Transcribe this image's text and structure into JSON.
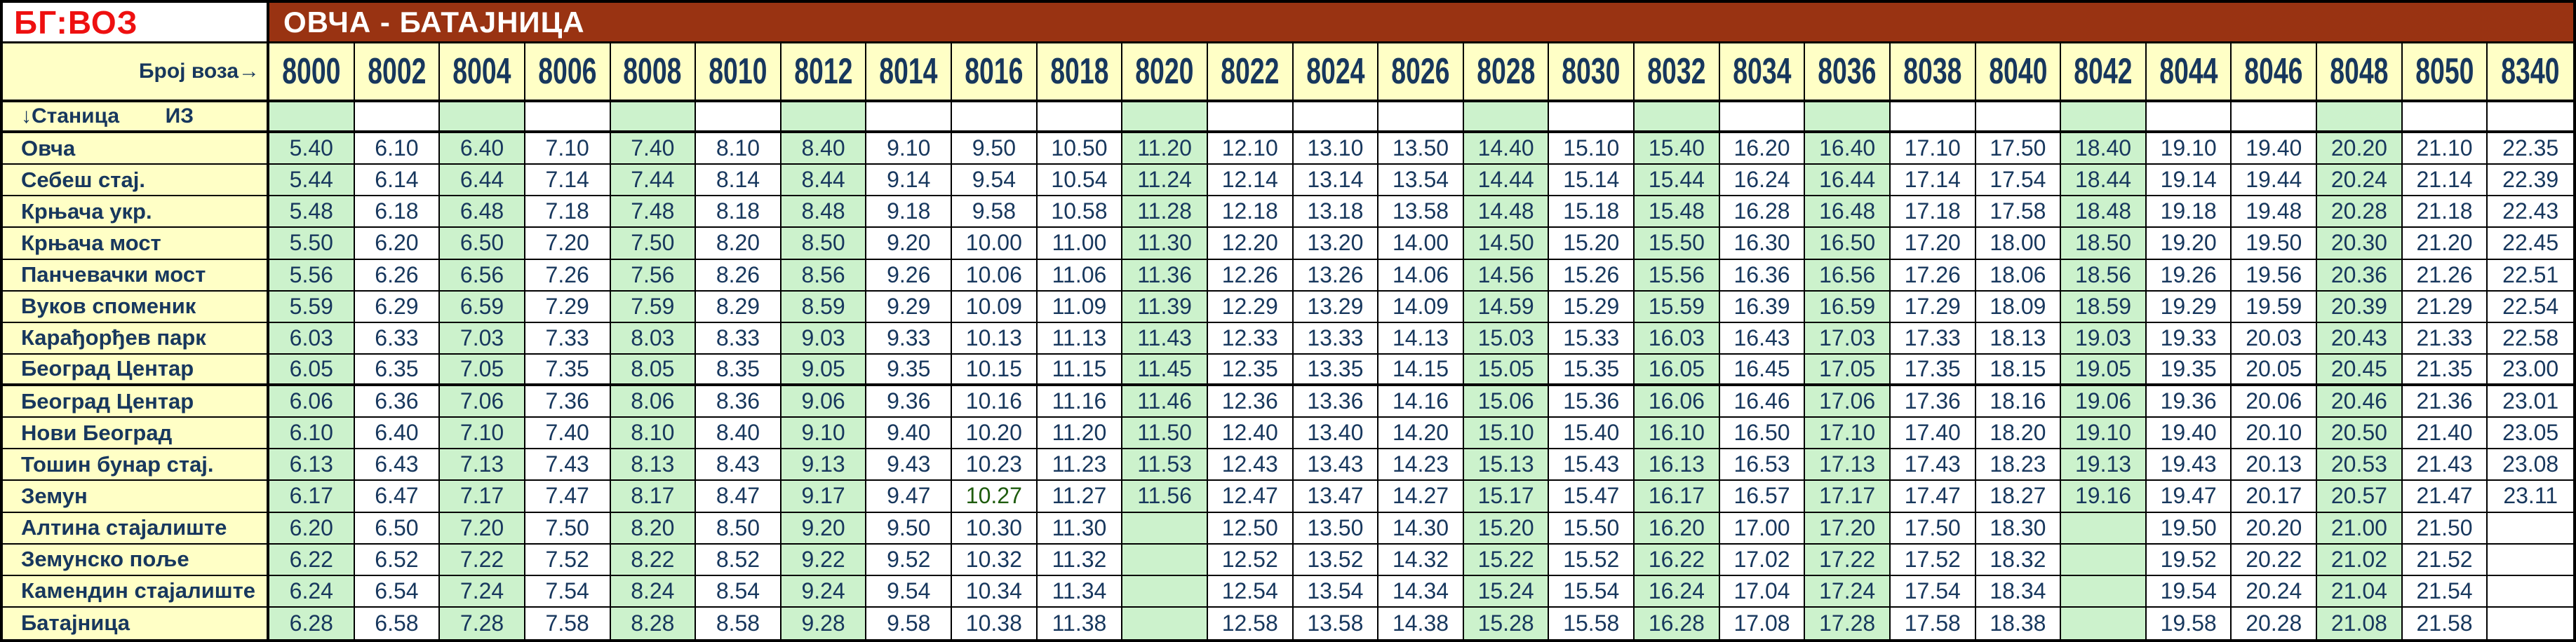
{
  "logo": "БГ:ВОЗ",
  "title": "ОВЧА - БАТАЈНИЦА",
  "labels": {
    "train_no": "Број воза→",
    "station": "↓Станица",
    "from": "ИЗ"
  },
  "colors": {
    "accent_brown": "#993312",
    "logo_red": "#EE1010",
    "navy": "#17375D",
    "green_bg": "#CCF2CC",
    "yellow_bg": "#FFFFC6",
    "special_green": "#1F5C0E"
  },
  "stations": [
    "Овча",
    "Себеш стај.",
    "Крњача укр.",
    "Крњача мост",
    "Панчевачки мост",
    "Вуков споменик",
    "Карађорђев парк",
    "Београд  Центар",
    "Београд  Центар",
    "Нови Београд",
    "Тошин бунар стај.",
    "Земун",
    "Алтина стајалиште",
    "Земунско поље",
    "Камендин стајалиште",
    "Батајница"
  ],
  "section_break_after_station_index": 7,
  "trains": [
    {
      "number": "8000",
      "highlight": true,
      "times": [
        "5.40",
        "5.44",
        "5.48",
        "5.50",
        "5.56",
        "5.59",
        "6.03",
        "6.05",
        "6.06",
        "6.10",
        "6.13",
        "6.17",
        "6.20",
        "6.22",
        "6.24",
        "6.28"
      ]
    },
    {
      "number": "8002",
      "highlight": false,
      "times": [
        "6.10",
        "6.14",
        "6.18",
        "6.20",
        "6.26",
        "6.29",
        "6.33",
        "6.35",
        "6.36",
        "6.40",
        "6.43",
        "6.47",
        "6.50",
        "6.52",
        "6.54",
        "6.58"
      ]
    },
    {
      "number": "8004",
      "highlight": true,
      "times": [
        "6.40",
        "6.44",
        "6.48",
        "6.50",
        "6.56",
        "6.59",
        "7.03",
        "7.05",
        "7.06",
        "7.10",
        "7.13",
        "7.17",
        "7.20",
        "7.22",
        "7.24",
        "7.28"
      ]
    },
    {
      "number": "8006",
      "highlight": false,
      "times": [
        "7.10",
        "7.14",
        "7.18",
        "7.20",
        "7.26",
        "7.29",
        "7.33",
        "7.35",
        "7.36",
        "7.40",
        "7.43",
        "7.47",
        "7.50",
        "7.52",
        "7.54",
        "7.58"
      ]
    },
    {
      "number": "8008",
      "highlight": true,
      "times": [
        "7.40",
        "7.44",
        "7.48",
        "7.50",
        "7.56",
        "7.59",
        "8.03",
        "8.05",
        "8.06",
        "8.10",
        "8.13",
        "8.17",
        "8.20",
        "8.22",
        "8.24",
        "8.28"
      ]
    },
    {
      "number": "8010",
      "highlight": false,
      "times": [
        "8.10",
        "8.14",
        "8.18",
        "8.20",
        "8.26",
        "8.29",
        "8.33",
        "8.35",
        "8.36",
        "8.40",
        "8.43",
        "8.47",
        "8.50",
        "8.52",
        "8.54",
        "8.58"
      ]
    },
    {
      "number": "8012",
      "highlight": true,
      "times": [
        "8.40",
        "8.44",
        "8.48",
        "8.50",
        "8.56",
        "8.59",
        "9.03",
        "9.05",
        "9.06",
        "9.10",
        "9.13",
        "9.17",
        "9.20",
        "9.22",
        "9.24",
        "9.28"
      ]
    },
    {
      "number": "8014",
      "highlight": false,
      "times": [
        "9.10",
        "9.14",
        "9.18",
        "9.20",
        "9.26",
        "9.29",
        "9.33",
        "9.35",
        "9.36",
        "9.40",
        "9.43",
        "9.47",
        "9.50",
        "9.52",
        "9.54",
        "9.58"
      ]
    },
    {
      "number": "8016",
      "highlight": false,
      "times": [
        "9.50",
        "9.54",
        "9.58",
        "10.00",
        "10.06",
        "10.09",
        "10.13",
        "10.15",
        "10.16",
        "10.20",
        "10.23",
        "10.27",
        "10.30",
        "10.32",
        "10.34",
        "10.38"
      ]
    },
    {
      "number": "8018",
      "highlight": false,
      "times": [
        "10.50",
        "10.54",
        "10.58",
        "11.00",
        "11.06",
        "11.09",
        "11.13",
        "11.15",
        "11.16",
        "11.20",
        "11.23",
        "11.27",
        "11.30",
        "11.32",
        "11.34",
        "11.38"
      ]
    },
    {
      "number": "8020",
      "highlight": true,
      "times": [
        "11.20",
        "11.24",
        "11.28",
        "11.30",
        "11.36",
        "11.39",
        "11.43",
        "11.45",
        "11.46",
        "11.50",
        "11.53",
        "11.56",
        "",
        "",
        "",
        ""
      ]
    },
    {
      "number": "8022",
      "highlight": false,
      "times": [
        "12.10",
        "12.14",
        "12.18",
        "12.20",
        "12.26",
        "12.29",
        "12.33",
        "12.35",
        "12.36",
        "12.40",
        "12.43",
        "12.47",
        "12.50",
        "12.52",
        "12.54",
        "12.58"
      ]
    },
    {
      "number": "8024",
      "highlight": false,
      "times": [
        "13.10",
        "13.14",
        "13.18",
        "13.20",
        "13.26",
        "13.29",
        "13.33",
        "13.35",
        "13.36",
        "13.40",
        "13.43",
        "13.47",
        "13.50",
        "13.52",
        "13.54",
        "13.58"
      ]
    },
    {
      "number": "8026",
      "highlight": false,
      "times": [
        "13.50",
        "13.54",
        "13.58",
        "14.00",
        "14.06",
        "14.09",
        "14.13",
        "14.15",
        "14.16",
        "14.20",
        "14.23",
        "14.27",
        "14.30",
        "14.32",
        "14.34",
        "14.38"
      ]
    },
    {
      "number": "8028",
      "highlight": true,
      "times": [
        "14.40",
        "14.44",
        "14.48",
        "14.50",
        "14.56",
        "14.59",
        "15.03",
        "15.05",
        "15.06",
        "15.10",
        "15.13",
        "15.17",
        "15.20",
        "15.22",
        "15.24",
        "15.28"
      ]
    },
    {
      "number": "8030",
      "highlight": false,
      "times": [
        "15.10",
        "15.14",
        "15.18",
        "15.20",
        "15.26",
        "15.29",
        "15.33",
        "15.35",
        "15.36",
        "15.40",
        "15.43",
        "15.47",
        "15.50",
        "15.52",
        "15.54",
        "15.58"
      ]
    },
    {
      "number": "8032",
      "highlight": true,
      "times": [
        "15.40",
        "15.44",
        "15.48",
        "15.50",
        "15.56",
        "15.59",
        "16.03",
        "16.05",
        "16.06",
        "16.10",
        "16.13",
        "16.17",
        "16.20",
        "16.22",
        "16.24",
        "16.28"
      ]
    },
    {
      "number": "8034",
      "highlight": false,
      "times": [
        "16.20",
        "16.24",
        "16.28",
        "16.30",
        "16.36",
        "16.39",
        "16.43",
        "16.45",
        "16.46",
        "16.50",
        "16.53",
        "16.57",
        "17.00",
        "17.02",
        "17.04",
        "17.08"
      ]
    },
    {
      "number": "8036",
      "highlight": true,
      "times": [
        "16.40",
        "16.44",
        "16.48",
        "16.50",
        "16.56",
        "16.59",
        "17.03",
        "17.05",
        "17.06",
        "17.10",
        "17.13",
        "17.17",
        "17.20",
        "17.22",
        "17.24",
        "17.28"
      ]
    },
    {
      "number": "8038",
      "highlight": false,
      "times": [
        "17.10",
        "17.14",
        "17.18",
        "17.20",
        "17.26",
        "17.29",
        "17.33",
        "17.35",
        "17.36",
        "17.40",
        "17.43",
        "17.47",
        "17.50",
        "17.52",
        "17.54",
        "17.58"
      ]
    },
    {
      "number": "8040",
      "highlight": false,
      "times": [
        "17.50",
        "17.54",
        "17.58",
        "18.00",
        "18.06",
        "18.09",
        "18.13",
        "18.15",
        "18.16",
        "18.20",
        "18.23",
        "18.27",
        "18.30",
        "18.32",
        "18.34",
        "18.38"
      ]
    },
    {
      "number": "8042",
      "highlight": true,
      "times": [
        "18.40",
        "18.44",
        "18.48",
        "18.50",
        "18.56",
        "18.59",
        "19.03",
        "19.05",
        "19.06",
        "19.10",
        "19.13",
        "19.16",
        "",
        "",
        "",
        ""
      ]
    },
    {
      "number": "8044",
      "highlight": false,
      "times": [
        "19.10",
        "19.14",
        "19.18",
        "19.20",
        "19.26",
        "19.29",
        "19.33",
        "19.35",
        "19.36",
        "19.40",
        "19.43",
        "19.47",
        "19.50",
        "19.52",
        "19.54",
        "19.58"
      ]
    },
    {
      "number": "8046",
      "highlight": false,
      "times": [
        "19.40",
        "19.44",
        "19.48",
        "19.50",
        "19.56",
        "19.59",
        "20.03",
        "20.05",
        "20.06",
        "20.10",
        "20.13",
        "20.17",
        "20.20",
        "20.22",
        "20.24",
        "20.28"
      ]
    },
    {
      "number": "8048",
      "highlight": true,
      "times": [
        "20.20",
        "20.24",
        "20.28",
        "20.30",
        "20.36",
        "20.39",
        "20.43",
        "20.45",
        "20.46",
        "20.50",
        "20.53",
        "20.57",
        "21.00",
        "21.02",
        "21.04",
        "21.08"
      ]
    },
    {
      "number": "8050",
      "highlight": false,
      "times": [
        "21.10",
        "21.14",
        "21.18",
        "21.20",
        "21.26",
        "21.29",
        "21.33",
        "21.35",
        "21.36",
        "21.40",
        "21.43",
        "21.47",
        "21.50",
        "21.52",
        "21.54",
        "21.58"
      ]
    },
    {
      "number": "8340",
      "highlight": false,
      "times": [
        "22.35",
        "22.39",
        "22.43",
        "22.45",
        "22.51",
        "22.54",
        "22.58",
        "23.00",
        "23.01",
        "23.05",
        "23.08",
        "23.11",
        "",
        "",
        "",
        ""
      ]
    }
  ],
  "special_cells": [
    {
      "train_number": "8016",
      "station_index": 11,
      "color_key": "special_green"
    }
  ]
}
